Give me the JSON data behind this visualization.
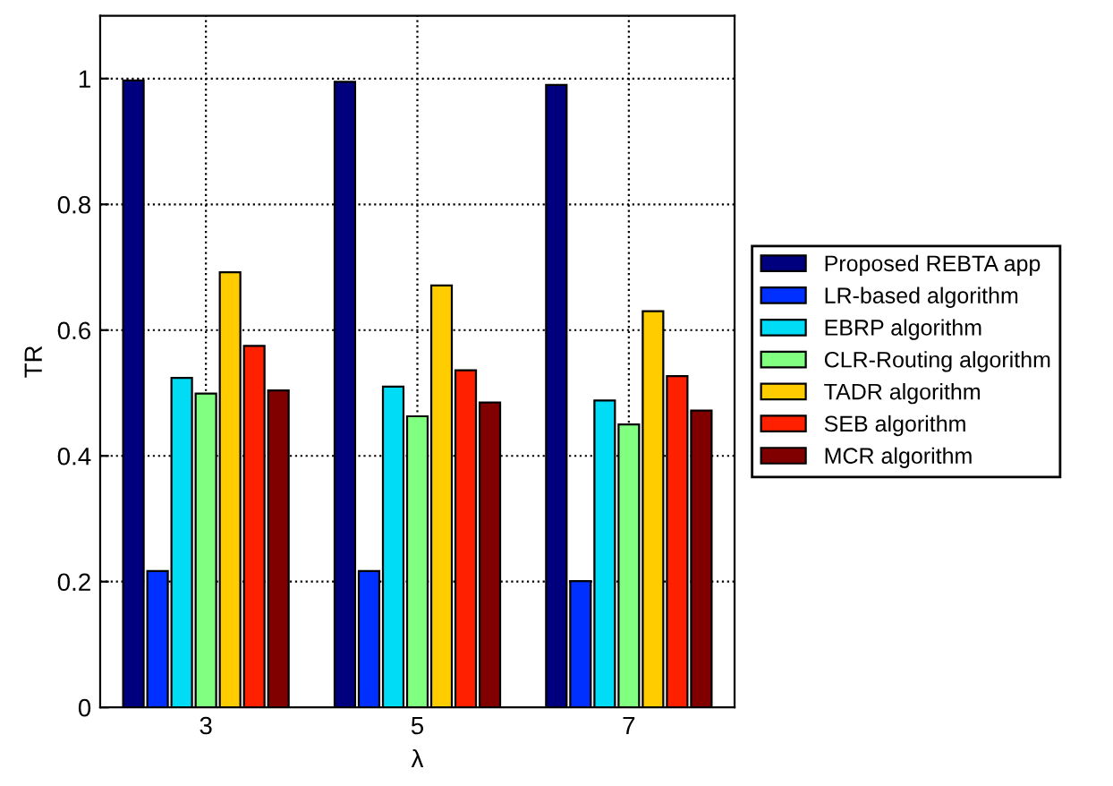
{
  "chart_data": {
    "type": "bar",
    "xlabel": "λ",
    "ylabel": "TR",
    "categories": [
      "3",
      "5",
      "7"
    ],
    "series": [
      {
        "name": "Proposed REBTA app",
        "color": "#00007f",
        "values": [
          0.997,
          0.995,
          0.99
        ]
      },
      {
        "name": "LR-based algorithm",
        "color": "#0030ff",
        "values": [
          0.217,
          0.217,
          0.201
        ]
      },
      {
        "name": "EBRP algorithm",
        "color": "#00dcf5",
        "values": [
          0.524,
          0.51,
          0.488
        ]
      },
      {
        "name": "CLR-Routing algorithm",
        "color": "#80ff80",
        "values": [
          0.499,
          0.463,
          0.45
        ]
      },
      {
        "name": "TADR algorithm",
        "color": "#ffcc00",
        "values": [
          0.692,
          0.671,
          0.63
        ]
      },
      {
        "name": "SEB algorithm",
        "color": "#ff2000",
        "values": [
          0.575,
          0.536,
          0.527
        ]
      },
      {
        "name": "MCR algorithm",
        "color": "#800000",
        "values": [
          0.504,
          0.485,
          0.472
        ]
      }
    ],
    "ylim": [
      0,
      1.1
    ],
    "yticks": [
      0,
      0.2,
      0.4,
      0.6,
      0.8,
      1
    ],
    "grid": true,
    "legend": "right"
  }
}
